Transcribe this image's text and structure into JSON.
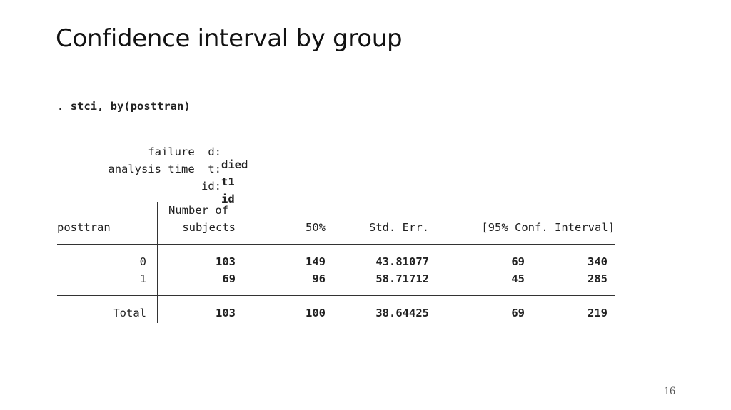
{
  "slide": {
    "title": "Confidence interval by group",
    "page_number": "16"
  },
  "console": {
    "prompt": ".",
    "command": "stci, by(posttran)",
    "meta": [
      {
        "key": "failure _d:",
        "value": "died"
      },
      {
        "key": "analysis time _t:",
        "value": "t1"
      },
      {
        "key": "id:",
        "value": "id"
      }
    ]
  },
  "table": {
    "headers": {
      "group": "posttran",
      "subjects_top": "Number of",
      "subjects_bottom": "subjects",
      "median": "50%",
      "stderr": "Std. Err.",
      "ci": "[95% Conf. Interval]"
    },
    "rows": [
      {
        "group": "0",
        "subjects": "103",
        "median": "149",
        "stderr": "43.81077",
        "ci_low": "69",
        "ci_high": "340"
      },
      {
        "group": "1",
        "subjects": "69",
        "median": "96",
        "stderr": "58.71712",
        "ci_low": "45",
        "ci_high": "285"
      }
    ],
    "total": {
      "group": "Total",
      "subjects": "103",
      "median": "100",
      "stderr": "38.64425",
      "ci_low": "69",
      "ci_high": "219"
    }
  }
}
